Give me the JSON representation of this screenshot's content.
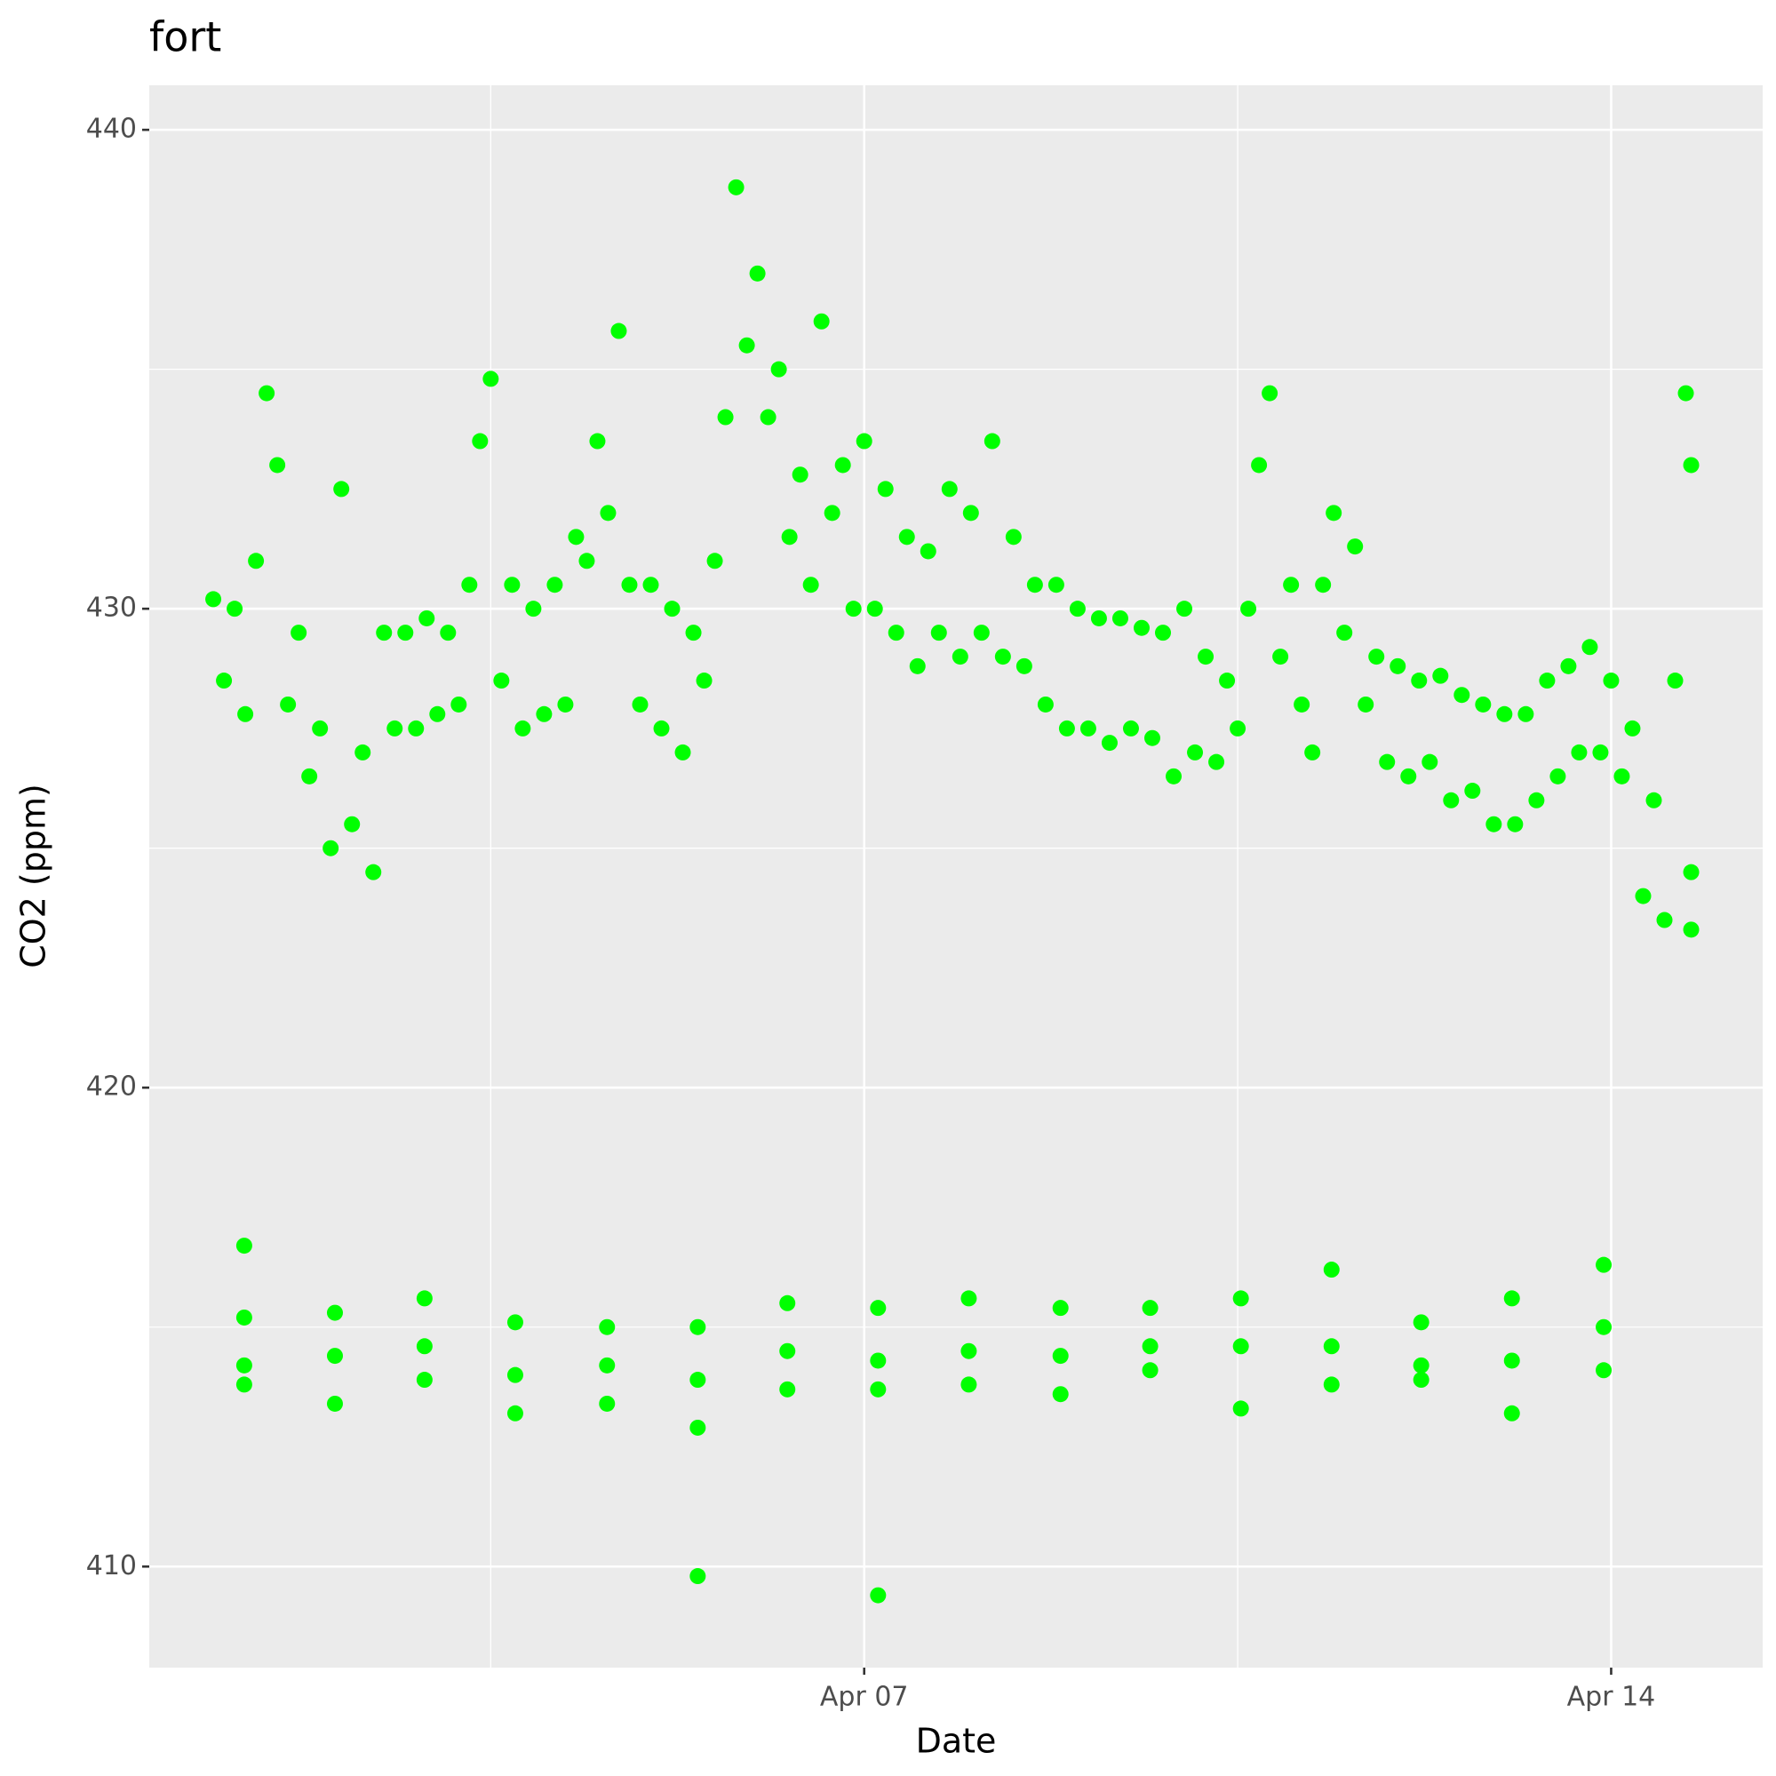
{
  "chart_data": {
    "type": "scatter",
    "title": "fort",
    "x_label": "Date",
    "y_label": "CO2 (ppm)",
    "xlim": [
      0.3,
      15.42
    ],
    "ylim": [
      407.89,
      440.93
    ],
    "xticks": [
      {
        "value": 7,
        "label": "Apr 07"
      },
      {
        "value": 14,
        "label": "Apr 14"
      }
    ],
    "yticks": [
      410,
      420,
      430,
      440
    ],
    "x_minor_grid": [
      3.5,
      10.5
    ],
    "y_minor_grid": [
      415,
      425,
      435
    ],
    "grid": true,
    "series": [
      {
        "color": "#00ff00",
        "x": [
          0.9,
          1.0,
          1.1,
          1.2,
          1.3,
          1.4,
          1.5,
          1.6,
          1.7,
          1.8,
          1.9,
          2.0,
          2.1,
          2.2,
          2.3,
          2.4,
          2.5,
          2.6,
          2.7,
          2.8,
          2.9,
          3.0,
          3.1,
          3.2,
          3.3,
          3.4,
          3.5,
          3.6,
          3.7,
          3.8,
          3.9,
          4.0,
          4.1,
          4.2,
          4.3,
          4.4,
          4.5,
          4.6,
          4.7,
          4.8,
          4.9,
          5.0,
          5.1,
          5.2,
          5.3,
          5.4,
          5.5,
          5.6,
          5.7,
          5.8,
          5.9,
          6.0,
          6.1,
          6.2,
          6.3,
          6.4,
          6.5,
          6.6,
          6.7,
          6.8,
          6.9,
          7.0,
          7.1,
          7.2,
          7.3,
          7.4,
          7.5,
          7.6,
          7.7,
          7.8,
          7.9,
          8.0,
          8.1,
          8.2,
          8.3,
          8.4,
          8.5,
          8.6,
          8.7,
          8.8,
          8.9,
          9.0,
          9.1,
          9.2,
          9.3,
          9.4,
          9.5,
          9.6,
          9.7,
          9.8,
          9.9,
          10.0,
          10.1,
          10.2,
          10.3,
          10.4,
          10.5,
          10.6,
          10.7,
          10.8,
          10.9,
          11.0,
          11.1,
          11.2,
          11.3,
          11.4,
          11.5,
          11.6,
          11.7,
          11.8,
          11.9,
          12.0,
          12.1,
          12.2,
          12.3,
          12.4,
          12.5,
          12.6,
          12.7,
          12.8,
          12.9,
          13.0,
          13.1,
          13.2,
          13.3,
          13.4,
          13.5,
          13.6,
          13.7,
          13.8,
          13.9,
          14.0,
          14.1,
          14.2,
          14.3,
          14.4,
          14.5,
          14.6,
          14.7,
          14.75,
          14.75,
          14.75,
          1.19,
          1.19,
          1.19,
          1.19,
          2.04,
          2.04,
          2.04,
          2.88,
          2.88,
          2.88,
          3.73,
          3.73,
          3.73,
          4.59,
          4.59,
          4.59,
          5.44,
          5.44,
          5.44,
          5.44,
          6.28,
          6.28,
          6.28,
          7.13,
          7.13,
          7.13,
          7.13,
          7.98,
          7.98,
          7.98,
          8.84,
          8.84,
          8.84,
          9.68,
          9.68,
          9.68,
          10.53,
          10.53,
          10.53,
          11.38,
          11.38,
          11.38,
          12.22,
          12.22,
          12.22,
          13.07,
          13.07,
          13.07,
          13.93,
          13.93,
          13.93
        ],
        "values": [
          430.2,
          428.5,
          430,
          427.8,
          431,
          434.5,
          433,
          428,
          429.5,
          426.5,
          427.5,
          425,
          432.5,
          425.5,
          427,
          424.5,
          429.5,
          427.5,
          429.5,
          427.5,
          429.8,
          427.8,
          429.5,
          428,
          430.5,
          433.5,
          434.8,
          428.5,
          430.5,
          427.5,
          430,
          427.8,
          430.5,
          428,
          431.5,
          431,
          433.5,
          432,
          435.8,
          430.5,
          428,
          430.5,
          427.5,
          430,
          427,
          429.5,
          428.5,
          431,
          434,
          438.8,
          435.5,
          437,
          434,
          435,
          431.5,
          432.8,
          430.5,
          436,
          432,
          433,
          430,
          433.5,
          430,
          432.5,
          429.5,
          431.5,
          428.8,
          431.2,
          429.5,
          432.5,
          429,
          432,
          429.5,
          433.5,
          429,
          431.5,
          428.8,
          430.5,
          428,
          430.5,
          427.5,
          430,
          427.5,
          429.8,
          427.2,
          429.8,
          427.5,
          429.6,
          427.3,
          429.5,
          426.5,
          430,
          427,
          429,
          426.8,
          428.5,
          427.5,
          430,
          433,
          434.5,
          429,
          430.5,
          428,
          427,
          430.5,
          432,
          429.5,
          431.3,
          428,
          429,
          426.8,
          428.8,
          426.5,
          428.5,
          426.8,
          428.6,
          426,
          428.2,
          426.2,
          428,
          425.5,
          427.8,
          425.5,
          427.8,
          426,
          428.5,
          426.5,
          428.8,
          427,
          429.2,
          427,
          428.5,
          426.5,
          427.5,
          424,
          426,
          423.5,
          428.5,
          434.5,
          433,
          424.5,
          423.3,
          416.7,
          415.2,
          414.2,
          413.8,
          415.3,
          414.4,
          413.4,
          415.6,
          414.6,
          413.9,
          415.1,
          414.0,
          413.2,
          415.0,
          414.2,
          413.4,
          415.0,
          413.9,
          412.9,
          409.8,
          415.5,
          414.5,
          413.7,
          415.4,
          414.3,
          413.7,
          409.4,
          415.6,
          414.5,
          413.8,
          415.4,
          414.4,
          413.6,
          415.4,
          414.6,
          414.1,
          415.6,
          414.6,
          413.3,
          416.2,
          414.6,
          413.8,
          415.1,
          414.2,
          413.9,
          415.6,
          414.3,
          413.2,
          416.3,
          415.0,
          414.1
        ]
      }
    ]
  }
}
